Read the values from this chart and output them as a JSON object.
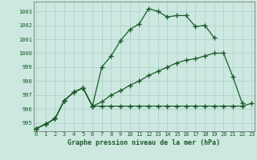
{
  "x": [
    0,
    1,
    2,
    3,
    4,
    5,
    6,
    7,
    8,
    9,
    10,
    11,
    12,
    13,
    14,
    15,
    16,
    17,
    18,
    19,
    20,
    21,
    22,
    23
  ],
  "line1": [
    994.6,
    994.9,
    995.3,
    996.6,
    997.2,
    997.5,
    996.2,
    999.0,
    999.8,
    1000.9,
    1001.7,
    1002.1,
    1003.2,
    1003.0,
    1002.6,
    1002.7,
    1002.7,
    1001.9,
    1002.0,
    1001.1,
    null,
    null,
    null,
    null
  ],
  "line2": [
    994.6,
    994.9,
    995.3,
    996.6,
    997.2,
    997.5,
    996.2,
    996.2,
    996.2,
    996.2,
    996.2,
    996.2,
    996.2,
    996.2,
    996.2,
    996.2,
    996.2,
    996.2,
    996.2,
    996.2,
    996.2,
    996.2,
    996.2,
    996.4
  ],
  "line3": [
    994.6,
    994.9,
    995.3,
    996.6,
    997.2,
    997.5,
    996.2,
    996.5,
    997.0,
    997.3,
    997.7,
    998.0,
    998.4,
    998.7,
    999.0,
    999.3,
    999.5,
    999.6,
    999.8,
    1000.0,
    1000.0,
    998.3,
    996.4,
    null
  ],
  "background_color": "#cce8e0",
  "grid_color": "#aacfc8",
  "line_color": "#1a5c2a",
  "xlabel": "Graphe pression niveau de la mer (hPa)",
  "ylim_min": 994.4,
  "ylim_max": 1003.7,
  "xlim_min": -0.3,
  "xlim_max": 23.3,
  "yticks": [
    995,
    996,
    997,
    998,
    999,
    1000,
    1001,
    1002,
    1003
  ],
  "xticks": [
    0,
    1,
    2,
    3,
    4,
    5,
    6,
    7,
    8,
    9,
    10,
    11,
    12,
    13,
    14,
    15,
    16,
    17,
    18,
    19,
    20,
    21,
    22,
    23
  ]
}
